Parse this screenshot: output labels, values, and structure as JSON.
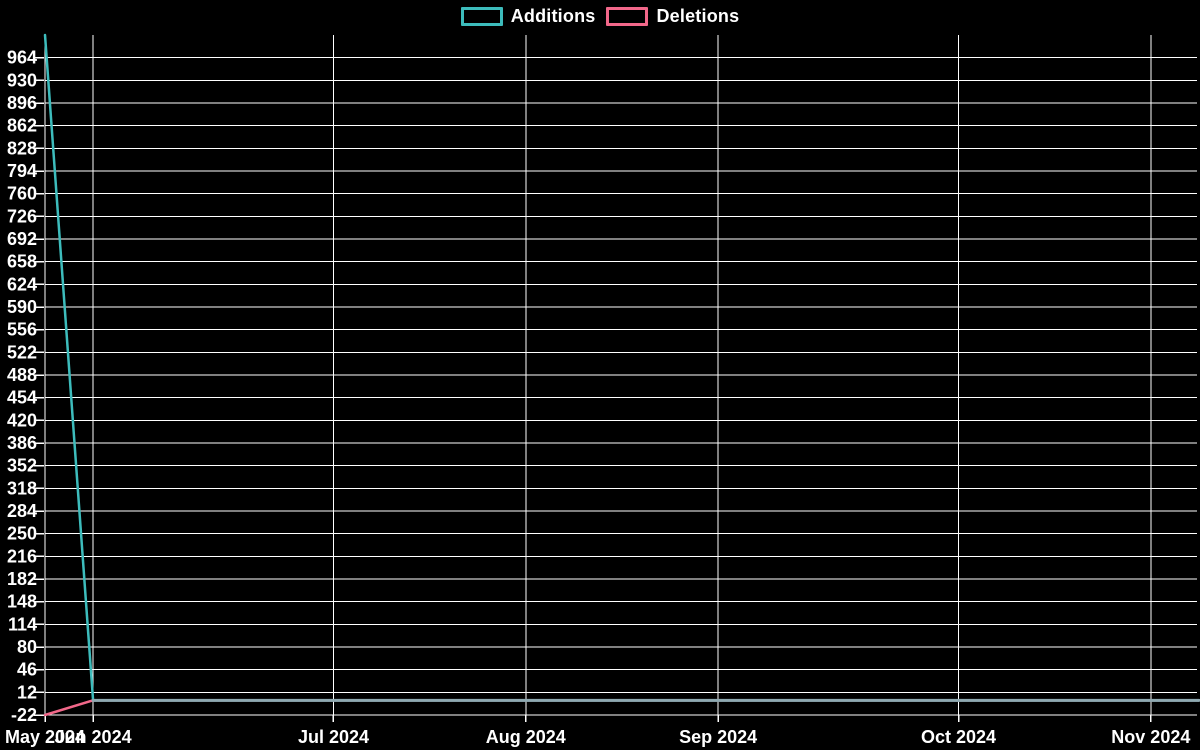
{
  "legend": {
    "items": [
      {
        "label": "Additions",
        "color": "#3dbcbc"
      },
      {
        "label": "Deletions",
        "color": "#f2688a"
      }
    ]
  },
  "colors": {
    "background": "#000000",
    "grid": "#ffffff",
    "text": "#ffffff",
    "additions": "#3dbcbc",
    "deletions": "#f2688a",
    "overlap_line": "#8fa9b1"
  },
  "chart_data": {
    "type": "line",
    "title": "",
    "legend_position": "top-center",
    "grid": true,
    "x": [
      "2024-05-26",
      "2024-06-02",
      "2024-06-09",
      "2024-06-16",
      "2024-06-23",
      "2024-06-30",
      "2024-07-07",
      "2024-07-14",
      "2024-07-21",
      "2024-07-28",
      "2024-08-04",
      "2024-08-11",
      "2024-08-18",
      "2024-08-25",
      "2024-09-01",
      "2024-09-08",
      "2024-09-15",
      "2024-09-22",
      "2024-09-29",
      "2024-10-06",
      "2024-10-13",
      "2024-10-20",
      "2024-10-27",
      "2024-11-03",
      "2024-11-10"
    ],
    "x_tick_indices": [
      0,
      1,
      6,
      10,
      14,
      19,
      23
    ],
    "x_tick_labels": [
      "May 2024",
      "Jun 2024",
      "Jul 2024",
      "Aug 2024",
      "Sep 2024",
      "Oct 2024",
      "Nov 2024"
    ],
    "y_ticks": [
      964,
      930,
      896,
      862,
      828,
      794,
      760,
      726,
      692,
      658,
      624,
      590,
      556,
      522,
      488,
      454,
      420,
      386,
      352,
      318,
      284,
      250,
      216,
      182,
      148,
      114,
      80,
      46,
      12,
      -22
    ],
    "ylim": [
      -22,
      998
    ],
    "series": [
      {
        "name": "Additions",
        "color": "#3dbcbc",
        "values": [
          998,
          0,
          0,
          0,
          0,
          0,
          0,
          0,
          0,
          0,
          0,
          0,
          0,
          0,
          0,
          0,
          0,
          0,
          0,
          0,
          0,
          0,
          0,
          0,
          0
        ]
      },
      {
        "name": "Deletions",
        "color": "#f2688a",
        "values": [
          -22,
          0,
          0,
          0,
          0,
          0,
          0,
          0,
          0,
          0,
          0,
          0,
          0,
          0,
          0,
          0,
          0,
          0,
          0,
          0,
          0,
          0,
          0,
          0,
          0
        ]
      }
    ]
  }
}
